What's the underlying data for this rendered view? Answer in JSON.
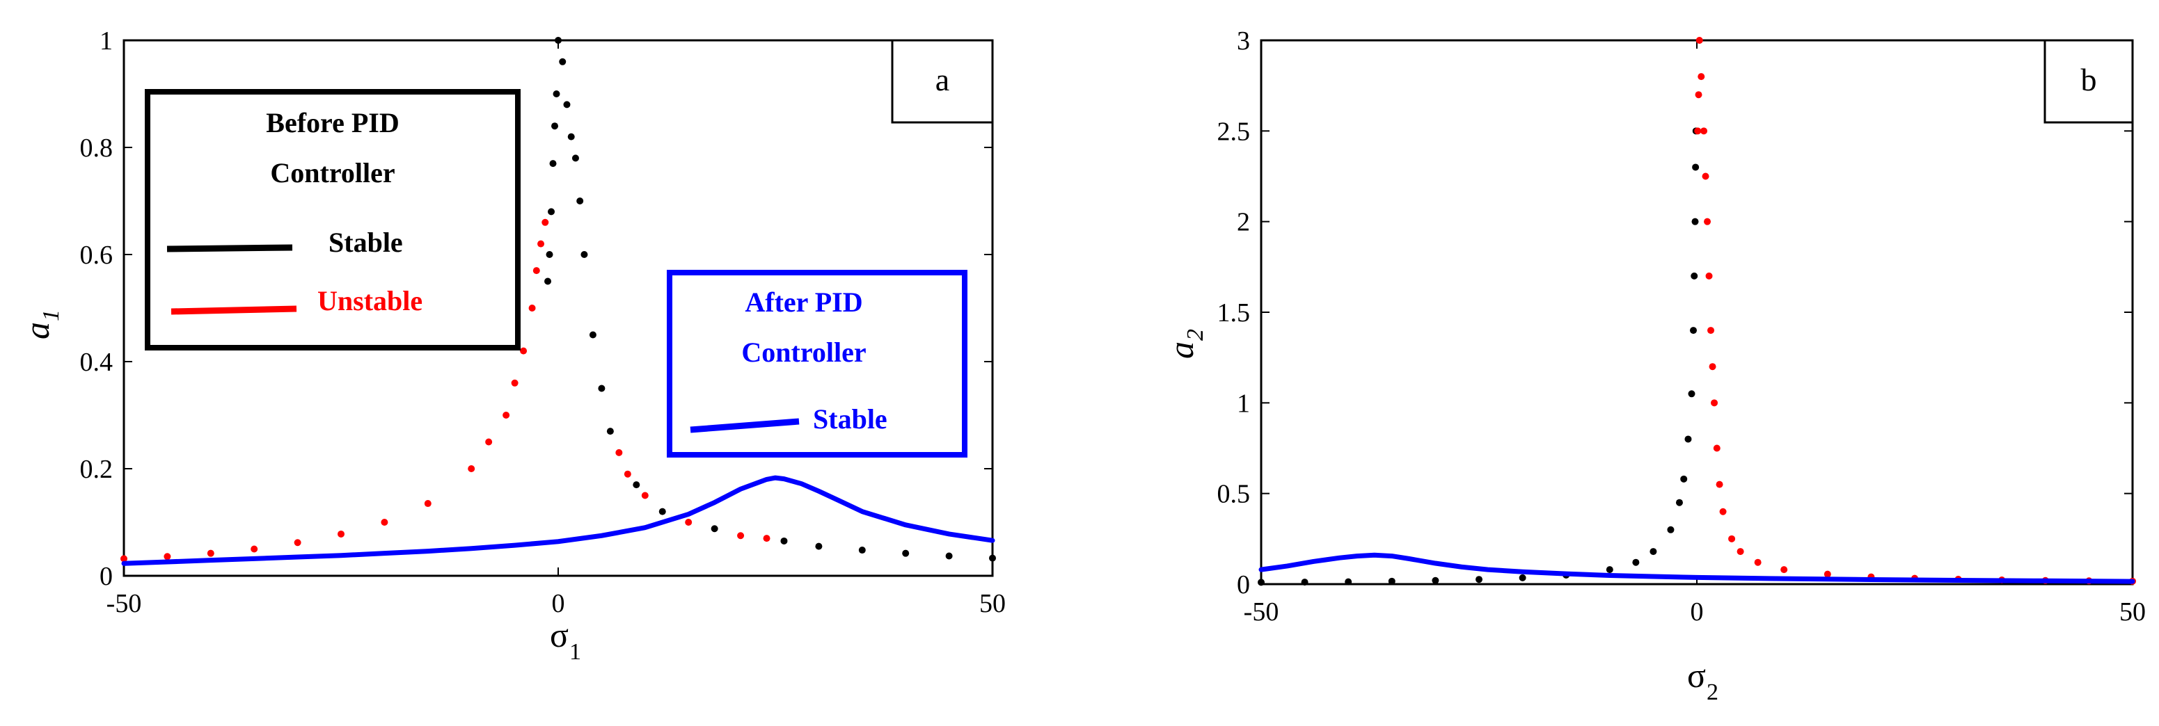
{
  "chart_data": [
    {
      "type": "line",
      "panel_label": "a",
      "xlabel": "σ",
      "xlabel_sub": "1",
      "ylabel": "a",
      "ylabel_sub": "1",
      "xlim": [
        -50,
        50
      ],
      "ylim": [
        0,
        1
      ],
      "x_ticks": [
        "-50",
        "0",
        "50"
      ],
      "y_ticks": [
        "0",
        "0.2",
        "0.4",
        "0.6",
        "0.8",
        "1"
      ],
      "legends": [
        {
          "title_lines": [
            "Before PID",
            "Controller"
          ],
          "entries": [
            {
              "label": "Stable",
              "color": "#000000"
            },
            {
              "label": "Unstable",
              "color": "#ff0000"
            }
          ],
          "border_color": "#000000",
          "placement": "upper-left"
        },
        {
          "title_lines": [
            "After PID",
            "Controller"
          ],
          "entries": [
            {
              "label": "Stable",
              "color": "#0000ff"
            }
          ],
          "border_color": "#0000ff",
          "placement": "middle-right"
        }
      ],
      "series": [
        {
          "curve": "before-pid",
          "style": "dots",
          "points": [
            [
              -50,
              0.032,
              "u"
            ],
            [
              -45,
              0.036,
              "u"
            ],
            [
              -40,
              0.042,
              "u"
            ],
            [
              -35,
              0.05,
              "u"
            ],
            [
              -30,
              0.062,
              "u"
            ],
            [
              -25,
              0.078,
              "u"
            ],
            [
              -20,
              0.1,
              "u"
            ],
            [
              -15,
              0.135,
              "u"
            ],
            [
              -10,
              0.2,
              "u"
            ],
            [
              -8,
              0.25,
              "u"
            ],
            [
              -6,
              0.3,
              "u"
            ],
            [
              -5,
              0.36,
              "u"
            ],
            [
              -4,
              0.42,
              "u"
            ],
            [
              -3,
              0.5,
              "u"
            ],
            [
              -2.5,
              0.57,
              "u"
            ],
            [
              -2,
              0.62,
              "u"
            ],
            [
              -1.5,
              0.66,
              "u"
            ],
            [
              -1.2,
              0.55,
              "s"
            ],
            [
              -1.0,
              0.6,
              "s"
            ],
            [
              -0.8,
              0.68,
              "s"
            ],
            [
              -0.6,
              0.77,
              "s"
            ],
            [
              -0.4,
              0.84,
              "s"
            ],
            [
              -0.2,
              0.9,
              "s"
            ],
            [
              0,
              1.0,
              "s"
            ],
            [
              0.5,
              0.96,
              "s"
            ],
            [
              1,
              0.88,
              "s"
            ],
            [
              1.5,
              0.82,
              "s"
            ],
            [
              2,
              0.78,
              "s"
            ],
            [
              2.5,
              0.7,
              "s"
            ],
            [
              3,
              0.6,
              "s"
            ],
            [
              4,
              0.45,
              "s"
            ],
            [
              5,
              0.35,
              "s"
            ],
            [
              6,
              0.27,
              "s"
            ],
            [
              7,
              0.23,
              "u"
            ],
            [
              8,
              0.19,
              "u"
            ],
            [
              9,
              0.17,
              "s"
            ],
            [
              10,
              0.15,
              "u"
            ],
            [
              12,
              0.12,
              "s"
            ],
            [
              15,
              0.1,
              "u"
            ],
            [
              18,
              0.088,
              "s"
            ],
            [
              21,
              0.075,
              "u"
            ],
            [
              24,
              0.07,
              "u"
            ],
            [
              26,
              0.065,
              "s"
            ],
            [
              30,
              0.055,
              "s"
            ],
            [
              35,
              0.048,
              "s"
            ],
            [
              40,
              0.042,
              "s"
            ],
            [
              45,
              0.037,
              "s"
            ],
            [
              50,
              0.033,
              "s"
            ]
          ]
        },
        {
          "curve": "after-pid",
          "style": "line",
          "color": "#0000ff",
          "x": [
            -50,
            -45,
            -40,
            -35,
            -30,
            -25,
            -20,
            -15,
            -10,
            -5,
            0,
            5,
            10,
            15,
            18,
            21,
            24,
            25,
            26,
            28,
            30,
            32,
            35,
            40,
            45,
            50
          ],
          "y": [
            0.023,
            0.026,
            0.029,
            0.032,
            0.035,
            0.038,
            0.042,
            0.046,
            0.051,
            0.057,
            0.064,
            0.075,
            0.09,
            0.115,
            0.137,
            0.162,
            0.18,
            0.183,
            0.181,
            0.172,
            0.158,
            0.143,
            0.12,
            0.095,
            0.078,
            0.066
          ]
        }
      ]
    },
    {
      "type": "line",
      "panel_label": "b",
      "xlabel": "σ",
      "xlabel_sub": "2",
      "ylabel": "a",
      "ylabel_sub": "2",
      "xlim": [
        -50,
        50
      ],
      "ylim": [
        0,
        3
      ],
      "x_ticks": [
        "-50",
        "0",
        "50"
      ],
      "y_ticks": [
        "0",
        "0.5",
        "1",
        "1.5",
        "2",
        "2.5",
        "3"
      ],
      "series": [
        {
          "curve": "before-pid-stable",
          "style": "dots",
          "color": "#000000",
          "points": [
            [
              -50,
              0.01
            ],
            [
              -45,
              0.011
            ],
            [
              -40,
              0.013
            ],
            [
              -35,
              0.016
            ],
            [
              -30,
              0.02
            ],
            [
              -25,
              0.026
            ],
            [
              -20,
              0.035
            ],
            [
              -15,
              0.05
            ],
            [
              -10,
              0.08
            ],
            [
              -7,
              0.12
            ],
            [
              -5,
              0.18
            ],
            [
              -3,
              0.3
            ],
            [
              -2,
              0.45
            ],
            [
              -1.5,
              0.58
            ],
            [
              -1,
              0.8
            ],
            [
              -0.6,
              1.05
            ],
            [
              -0.4,
              1.4
            ],
            [
              -0.3,
              1.7
            ],
            [
              -0.2,
              2.0
            ],
            [
              -0.15,
              2.3
            ],
            [
              -0.1,
              2.5
            ]
          ]
        },
        {
          "curve": "before-pid-unstable",
          "style": "dots",
          "color": "#ff0000",
          "points": [
            [
              0.1,
              2.5
            ],
            [
              0.2,
              2.7
            ],
            [
              0.3,
              3.0
            ],
            [
              0.5,
              2.8
            ],
            [
              0.8,
              2.5
            ],
            [
              1.0,
              2.25
            ],
            [
              1.2,
              2.0
            ],
            [
              1.4,
              1.7
            ],
            [
              1.6,
              1.4
            ],
            [
              1.8,
              1.2
            ],
            [
              2.0,
              1.0
            ],
            [
              2.3,
              0.75
            ],
            [
              2.6,
              0.55
            ],
            [
              3,
              0.4
            ],
            [
              4,
              0.25
            ],
            [
              5,
              0.18
            ],
            [
              7,
              0.12
            ],
            [
              10,
              0.08
            ],
            [
              15,
              0.055
            ],
            [
              20,
              0.04
            ],
            [
              25,
              0.032
            ],
            [
              30,
              0.027
            ],
            [
              35,
              0.023
            ],
            [
              40,
              0.02
            ],
            [
              45,
              0.018
            ],
            [
              50,
              0.016
            ]
          ]
        },
        {
          "curve": "after-pid",
          "style": "line",
          "color": "#0000ff",
          "x": [
            -50,
            -47,
            -44,
            -41,
            -39,
            -37,
            -35,
            -33,
            -30,
            -27,
            -24,
            -20,
            -15,
            -10,
            -5,
            0,
            10,
            20,
            30,
            40,
            50
          ],
          "y": [
            0.08,
            0.1,
            0.125,
            0.145,
            0.155,
            0.16,
            0.155,
            0.14,
            0.115,
            0.095,
            0.08,
            0.068,
            0.057,
            0.048,
            0.042,
            0.037,
            0.03,
            0.025,
            0.021,
            0.018,
            0.015
          ]
        }
      ]
    }
  ]
}
